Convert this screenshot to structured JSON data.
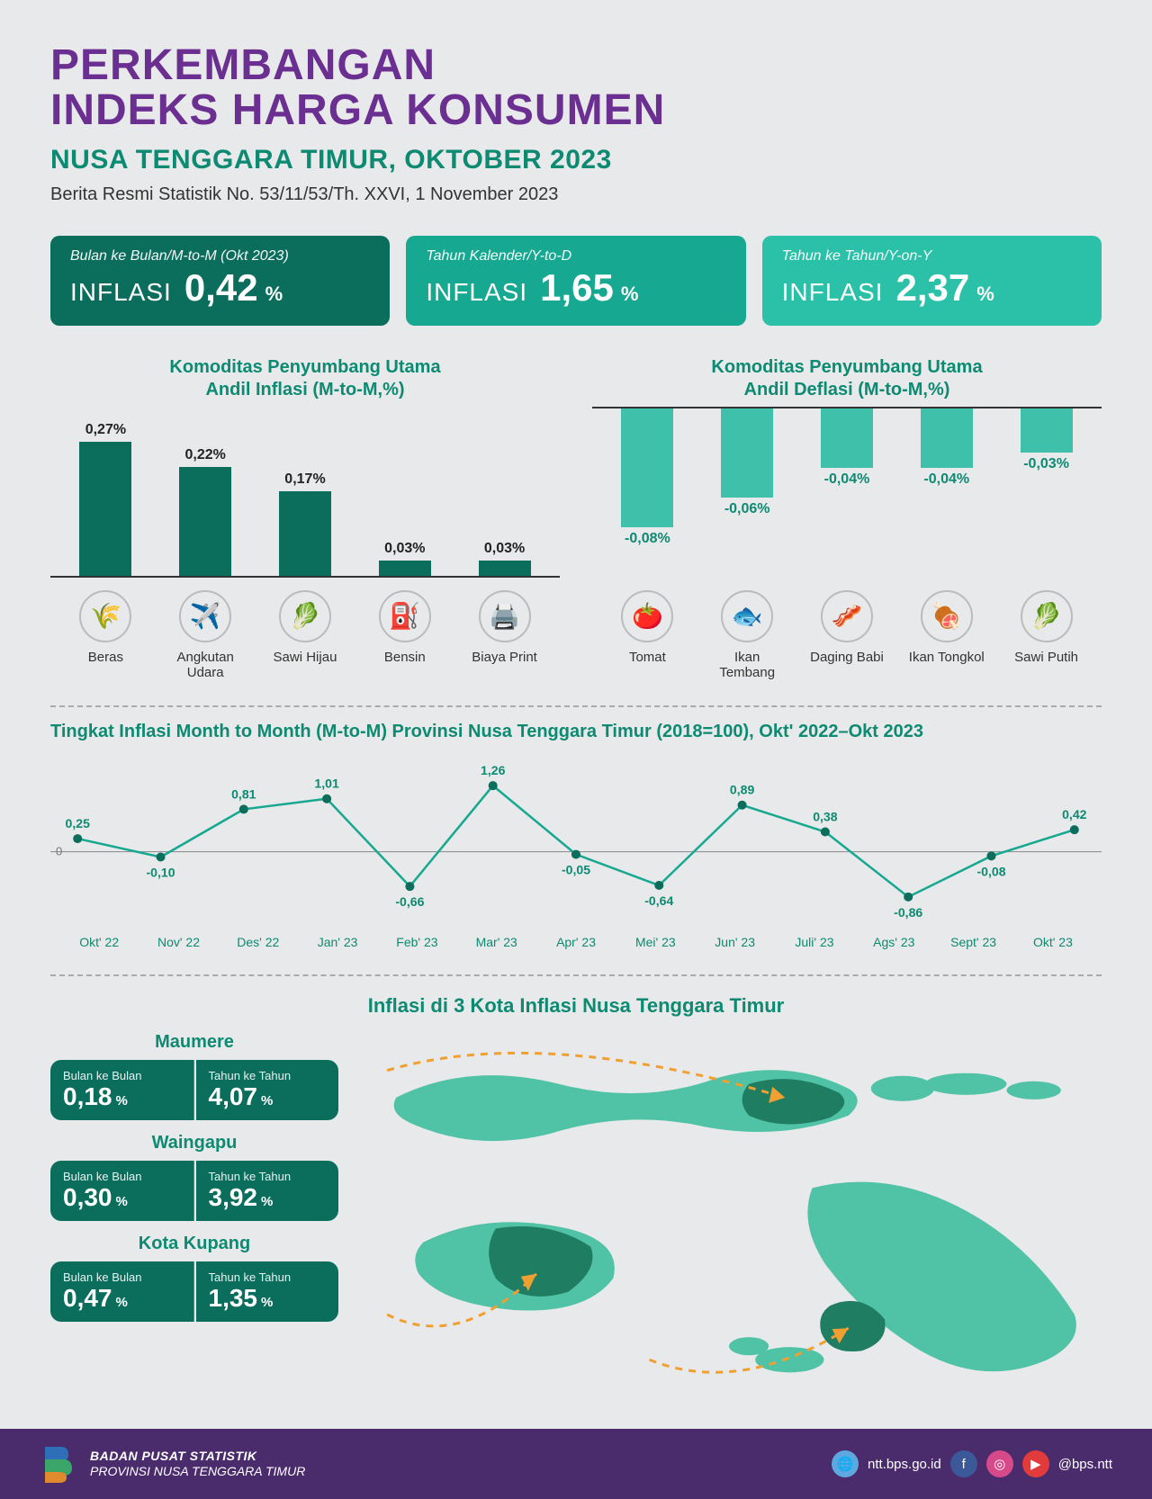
{
  "header": {
    "title_line1": "PERKEMBANGAN",
    "title_line2": "INDEKS HARGA KONSUMEN",
    "subtitle_region": "NUSA TENGGARA TIMUR, ",
    "subtitle_period": "OKTOBER 2023",
    "reference": "Berita Resmi Statistik No. 53/11/53/Th. XXVI, 1 November 2023",
    "title_color": "#6b2f91",
    "sub_color": "#0d8a72"
  },
  "stat_cards": [
    {
      "sup": "Bulan ke Bulan/M-to-M (Okt 2023)",
      "label": "INFLASI",
      "value": "0,42",
      "unit": "%",
      "bg": "#0b6e5c"
    },
    {
      "sup": "Tahun Kalender/Y-to-D",
      "label": "INFLASI",
      "value": "1,65",
      "unit": "%",
      "bg": "#16a890"
    },
    {
      "sup": "Tahun ke Tahun/Y-on-Y",
      "label": "INFLASI",
      "value": "2,37",
      "unit": "%",
      "bg": "#2bc0a8"
    }
  ],
  "inflation_bars": {
    "title_l1": "Komoditas Penyumbang Utama",
    "title_l2": "Andil Inflasi (M-to-M,%)",
    "max": 0.3,
    "bar_color": "#0b6e5c",
    "items": [
      {
        "label": "Beras",
        "value_text": "0,27%",
        "value": 0.27,
        "icon": "🌾"
      },
      {
        "label": "Angkutan Udara",
        "value_text": "0,22%",
        "value": 0.22,
        "icon": "✈️"
      },
      {
        "label": "Sawi Hijau",
        "value_text": "0,17%",
        "value": 0.17,
        "icon": "🥬"
      },
      {
        "label": "Bensin",
        "value_text": "0,03%",
        "value": 0.03,
        "icon": "⛽"
      },
      {
        "label": "Biaya Print",
        "value_text": "0,03%",
        "value": 0.03,
        "icon": "🖨️"
      }
    ]
  },
  "deflation_bars": {
    "title_l1": "Komoditas Penyumbang Utama",
    "title_l2": "Andil Deflasi (M-to-M,%)",
    "max": 0.1,
    "bar_color": "#3fc0aa",
    "items": [
      {
        "label": "Tomat",
        "value_text": "-0,08%",
        "value": 0.08,
        "icon": "🍅"
      },
      {
        "label": "Ikan Tembang",
        "value_text": "-0,06%",
        "value": 0.06,
        "icon": "🐟"
      },
      {
        "label": "Daging Babi",
        "value_text": "-0,04%",
        "value": 0.04,
        "icon": "🥓"
      },
      {
        "label": "Ikan Tongkol",
        "value_text": "-0,04%",
        "value": 0.04,
        "icon": "🍖"
      },
      {
        "label": "Sawi Putih",
        "value_text": "-0,03%",
        "value": 0.03,
        "icon": "🥬"
      }
    ]
  },
  "line_chart": {
    "title": "Tingkat Inflasi Month to Month (M-to-M) Provinsi Nusa Tenggara Timur (2018=100), Okt' 2022–Okt 2023",
    "ymin": -1.0,
    "ymax": 1.4,
    "line_color": "#16a890",
    "point_color": "#0b6e5c",
    "zero_color": "#888",
    "labels": [
      "Okt' 22",
      "Nov' 22",
      "Des' 22",
      "Jan' 23",
      "Feb' 23",
      "Mar' 23",
      "Apr' 23",
      "Mei' 23",
      "Jun' 23",
      "Juli' 23",
      "Ags' 23",
      "Sept' 23",
      "Okt' 23"
    ],
    "values": [
      0.25,
      -0.1,
      0.81,
      1.01,
      -0.66,
      1.26,
      -0.05,
      -0.64,
      0.89,
      0.38,
      -0.86,
      -0.08,
      0.42
    ],
    "value_texts": [
      "0,25",
      "-0,10",
      "0,81",
      "1,01",
      "-0,66",
      "1,26",
      "-0,05",
      "-0,64",
      "0,89",
      "0,38",
      "-0,86",
      "-0,08",
      "0,42"
    ]
  },
  "cities_section": {
    "title": "Inflasi di 3 Kota Inflasi Nusa Tenggara Timur",
    "pill_bg": "#0b6e5c",
    "map_light": "#50c2a6",
    "map_dark": "#1f7d62",
    "path_color": "#f0a030",
    "cities": [
      {
        "name": "Maumere",
        "mtm_label": "Bulan ke Bulan",
        "mtm": "0,18",
        "yoy_label": "Tahun ke Tahun",
        "yoy": "4,07"
      },
      {
        "name": "Waingapu",
        "mtm_label": "Bulan ke Bulan",
        "mtm": "0,30",
        "yoy_label": "Tahun ke Tahun",
        "yoy": "3,92"
      },
      {
        "name": "Kota Kupang",
        "mtm_label": "Bulan ke Bulan",
        "mtm": "0,47",
        "yoy_label": "Tahun ke Tahun",
        "yoy": "1,35"
      }
    ]
  },
  "footer": {
    "org_l1": "BADAN PUSAT STATISTIK",
    "org_l2": "PROVINSI NUSA TENGGARA TIMUR",
    "site": "ntt.bps.go.id",
    "handle": "@bps.ntt",
    "bg": "#4a2b6b",
    "globe_bg": "#5ea8e0",
    "fb_bg": "#3b5998",
    "ig_bg": "#d64a8a",
    "yt_bg": "#e23b3b"
  }
}
